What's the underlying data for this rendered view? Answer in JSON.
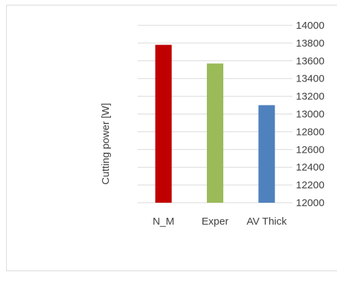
{
  "chart_data": {
    "type": "bar",
    "title": "",
    "xlabel": "",
    "ylabel": "Cutting power [W]",
    "categories": [
      "N_M",
      "Exper",
      "AV Thick"
    ],
    "values": [
      13780,
      13570,
      13100
    ],
    "colors": [
      "#c00000",
      "#9bbb59",
      "#4f81bd"
    ],
    "ylim": [
      12000,
      14000
    ],
    "yticks": [
      12000,
      12200,
      12400,
      12600,
      12800,
      13000,
      13200,
      13400,
      13600,
      13800,
      14000
    ],
    "yaxis_side": "right",
    "grid": true,
    "gridline_color": "#d9d9d9",
    "text_color": "#404040"
  }
}
